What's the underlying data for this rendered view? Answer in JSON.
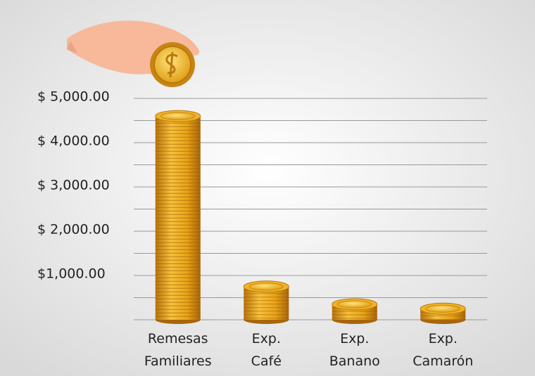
{
  "chart_data": {
    "type": "coin-stack",
    "categories": [
      [
        "Remesas",
        "Familiares"
      ],
      [
        "Exp.",
        "Café"
      ],
      [
        "Exp.",
        "Banano"
      ],
      [
        "Exp.",
        "Camarón"
      ]
    ],
    "values": [
      4600,
      750,
      350,
      250
    ],
    "color": "#e8a317",
    "ylim": [
      0,
      5000
    ],
    "yticks": [
      {
        "value": 1000,
        "label": "$1,000.00"
      },
      {
        "value": 2000,
        "label": "$ 2,000.00"
      },
      {
        "value": 3000,
        "label": "$ 3,000.00"
      },
      {
        "value": 4000,
        "label": "$ 4,000.00"
      },
      {
        "value": 5000,
        "label": "$ 5,000.00"
      }
    ],
    "minor_gridlines": [
      0,
      500,
      1500,
      2500,
      3500,
      4500
    ],
    "grid": true
  }
}
